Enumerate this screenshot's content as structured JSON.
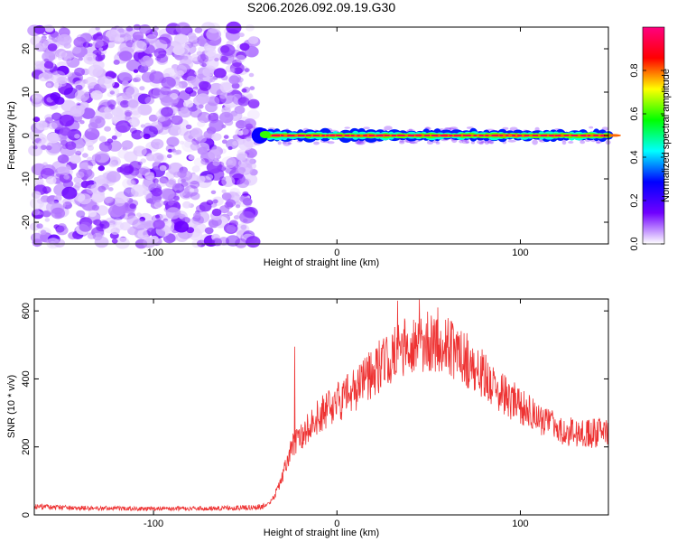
{
  "title": "S206.2026.092.09.19.G30",
  "chart_data": [
    {
      "type": "heatmap",
      "name": "spectrogram",
      "xlabel": "Height of straight line (km)",
      "ylabel": "Frequency (Hz)",
      "xlim": [
        -165,
        148
      ],
      "ylim": [
        -25,
        25
      ],
      "x_ticks": [
        -100,
        0,
        100
      ],
      "y_ticks": [
        -20,
        -10,
        0,
        10,
        20
      ],
      "noise_region_x": [
        -165,
        -45
      ],
      "signal_start_x": -45,
      "signal_frequency": 0,
      "colorbar": {
        "label": "Normalized spectral amplitude",
        "range": [
          0,
          1
        ],
        "ticks": [
          0.0,
          0.2,
          0.4,
          0.6,
          0.8
        ],
        "tick_labels": [
          "0.0",
          "0.2",
          "0.4",
          "0.6",
          "0.8"
        ],
        "colormap": [
          "#ffffff",
          "#7000ff",
          "#0000ff",
          "#00ffff",
          "#00ff00",
          "#ffff00",
          "#ff0000",
          "#ff0080"
        ]
      }
    },
    {
      "type": "line",
      "name": "snr",
      "xlabel": "Height of straight line (km)",
      "ylabel": "SNR (10 * v/v)",
      "xlim": [
        -165,
        148
      ],
      "ylim": [
        0,
        635
      ],
      "x_ticks": [
        -100,
        0,
        100
      ],
      "y_ticks": [
        0,
        200,
        400,
        600
      ],
      "color": "#ee3333",
      "envelope": {
        "x": [
          -165,
          -140,
          -100,
          -60,
          -45,
          -38,
          -34,
          -30,
          -27,
          -25,
          -22,
          -20,
          -15,
          -10,
          -5,
          0,
          5,
          10,
          20,
          30,
          40,
          50,
          60,
          70,
          80,
          90,
          100,
          110,
          120,
          130,
          140,
          148
        ],
        "y": [
          24,
          20,
          18,
          20,
          22,
          28,
          55,
          110,
          160,
          200,
          215,
          225,
          260,
          290,
          310,
          330,
          350,
          370,
          420,
          470,
          500,
          510,
          500,
          460,
          410,
          360,
          320,
          280,
          255,
          240,
          240,
          250
        ]
      },
      "spikes": [
        {
          "x": -23,
          "y": 495
        },
        {
          "x": 33,
          "y": 630
        },
        {
          "x": 45,
          "y": 633
        },
        {
          "x": 55,
          "y": 610
        }
      ]
    }
  ]
}
